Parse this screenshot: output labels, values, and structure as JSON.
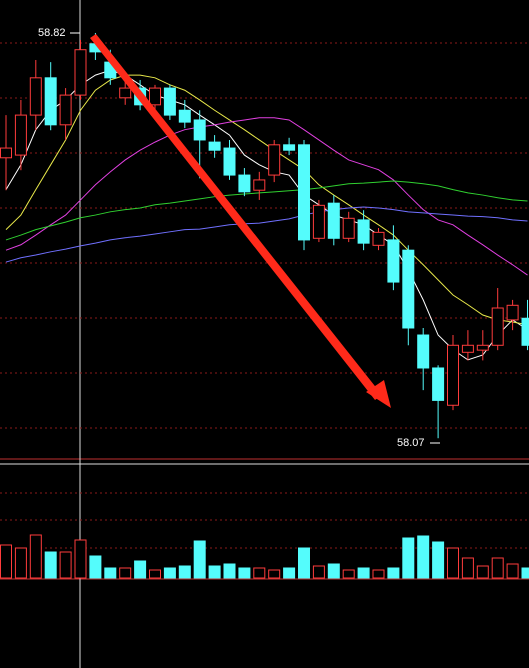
{
  "chart_data": {
    "type": "candlestick",
    "annotations": [
      "58.82",
      "58.07"
    ],
    "ylim": [
      58.026,
      58.881
    ],
    "up_color": "#ff3c3c",
    "down_color": "#54fcfc",
    "open": [
      58.589,
      58.594,
      58.668,
      58.737,
      58.65,
      58.705,
      58.8,
      58.766,
      58.7,
      58.718,
      58.687,
      58.718,
      58.677,
      58.659,
      58.618,
      58.607,
      58.557,
      58.529,
      58.557,
      58.613,
      58.613,
      58.44,
      58.505,
      58.44,
      58.474,
      58.427,
      58.437,
      58.418,
      58.261,
      58.2,
      58.131,
      58.229,
      58.233,
      58.242,
      58.289,
      58.292
    ],
    "high": [
      58.668,
      58.696,
      58.77,
      58.766,
      58.718,
      58.807,
      58.82,
      58.789,
      58.733,
      58.733,
      58.724,
      58.724,
      58.696,
      58.677,
      58.631,
      58.622,
      58.57,
      58.563,
      58.622,
      58.626,
      58.622,
      58.511,
      58.52,
      58.489,
      58.492,
      58.459,
      58.464,
      58.427,
      58.274,
      58.205,
      58.261,
      58.27,
      58.27,
      58.348,
      58.326,
      58.326
    ],
    "low": [
      58.529,
      58.566,
      58.64,
      58.64,
      58.622,
      58.696,
      58.77,
      58.724,
      58.687,
      58.677,
      58.677,
      58.659,
      58.644,
      58.551,
      58.589,
      58.548,
      58.518,
      58.511,
      58.544,
      58.594,
      58.418,
      58.433,
      58.427,
      58.433,
      58.418,
      58.418,
      58.344,
      58.242,
      58.159,
      58.07,
      58.122,
      58.214,
      58.214,
      58.233,
      58.27,
      58.233
    ],
    "close": [
      58.607,
      58.668,
      58.737,
      58.65,
      58.705,
      58.789,
      58.785,
      58.737,
      58.718,
      58.687,
      58.718,
      58.668,
      58.655,
      58.622,
      58.603,
      58.557,
      58.526,
      58.548,
      58.613,
      58.603,
      58.437,
      58.501,
      58.44,
      58.477,
      58.431,
      58.451,
      58.359,
      58.274,
      58.2,
      58.14,
      58.242,
      58.242,
      58.242,
      58.311,
      58.316,
      58.242
    ],
    "ma_lines": [
      {
        "color": "#ffffff",
        "values": [
          58.53,
          58.576,
          58.641,
          58.677,
          58.696,
          58.724,
          58.742,
          58.751,
          58.742,
          58.724,
          58.705,
          58.696,
          58.687,
          58.668,
          58.65,
          58.631,
          58.594,
          58.576,
          58.563,
          58.557,
          58.52,
          58.502,
          58.483,
          58.474,
          58.465,
          58.446,
          58.428,
          58.381,
          58.326,
          58.261,
          58.234,
          58.215,
          58.224,
          58.261,
          58.289,
          58.271
        ]
      },
      {
        "color": "#e8e84a",
        "values": [
          58.456,
          58.483,
          58.53,
          58.576,
          58.622,
          58.677,
          58.714,
          58.733,
          58.742,
          58.742,
          58.737,
          58.724,
          58.714,
          58.696,
          58.677,
          58.659,
          58.641,
          58.622,
          58.603,
          58.585,
          58.567,
          58.539,
          58.52,
          58.502,
          58.483,
          58.465,
          58.446,
          58.418,
          58.391,
          58.363,
          58.335,
          58.317,
          58.298,
          58.289,
          58.285,
          58.28
        ]
      },
      {
        "color": "#e040e0",
        "values": [
          58.418,
          58.428,
          58.446,
          58.465,
          58.483,
          58.511,
          58.539,
          58.563,
          58.585,
          58.603,
          58.618,
          58.631,
          58.641,
          58.646,
          58.65,
          58.655,
          58.659,
          58.663,
          58.663,
          58.659,
          58.641,
          58.622,
          58.603,
          58.585,
          58.576,
          58.567,
          58.548,
          58.52,
          58.493,
          58.474,
          58.465,
          58.446,
          58.428,
          58.409,
          58.391,
          58.372
        ]
      },
      {
        "color": "#30d030",
        "values": [
          58.437,
          58.446,
          58.456,
          58.463,
          58.47,
          58.478,
          58.483,
          58.489,
          58.493,
          58.496,
          58.502,
          58.505,
          58.509,
          58.513,
          58.517,
          58.52,
          58.522,
          58.524,
          58.526,
          58.528,
          58.53,
          58.533,
          58.537,
          58.541,
          58.542,
          58.544,
          58.546,
          58.544,
          58.541,
          58.537,
          58.53,
          58.524,
          58.52,
          58.515,
          58.511,
          58.509
        ]
      },
      {
        "color": "#7070ff",
        "values": [
          58.396,
          58.404,
          58.409,
          58.415,
          58.42,
          58.426,
          58.431,
          58.437,
          58.441,
          58.444,
          58.448,
          58.452,
          58.456,
          58.457,
          58.461,
          58.465,
          58.467,
          58.468,
          58.472,
          58.476,
          58.483,
          58.489,
          58.493,
          58.496,
          58.498,
          58.496,
          58.493,
          58.489,
          58.487,
          58.485,
          58.483,
          58.481,
          58.48,
          58.478,
          58.474,
          58.472
        ]
      }
    ],
    "volume": {
      "lim": [
        0,
        113
      ],
      "values": [
        33,
        30,
        43,
        26,
        26,
        38,
        22,
        10,
        10,
        17,
        8,
        10,
        12,
        37,
        12,
        14,
        10,
        10,
        8,
        10,
        30,
        12,
        14,
        8,
        10,
        8,
        10,
        40,
        42,
        36,
        30,
        20,
        12,
        20,
        14,
        10
      ]
    }
  }
}
